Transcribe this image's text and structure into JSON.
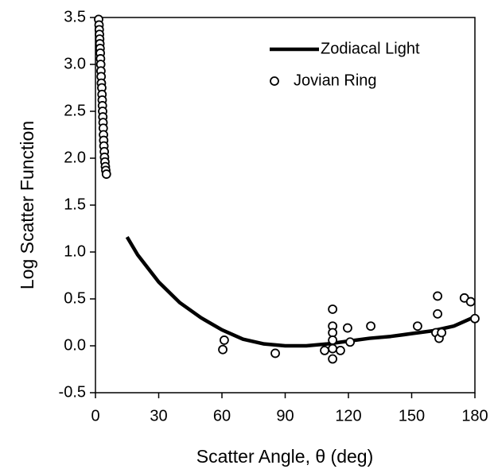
{
  "chart_data": {
    "type": "scatter",
    "xlabel": "Scatter Angle, θ (deg)",
    "ylabel": "Log Scatter Function",
    "xlim": [
      0,
      180
    ],
    "xticks": [
      0,
      30,
      60,
      90,
      120,
      150,
      180
    ],
    "ylim": [
      -0.5,
      3.5
    ],
    "yticks": [
      -0.5,
      {
        "value": 0,
        "label": "0.0"
      },
      0.5,
      {
        "value": 1,
        "label": "1.0"
      },
      1.5,
      {
        "value": 2,
        "label": "2.0"
      },
      2.5,
      {
        "value": 3,
        "label": "3.0"
      },
      3.5
    ],
    "legend": "upper right",
    "series": [
      {
        "name": "Zodiacal Light",
        "type": "line",
        "color": "#000000",
        "x": [
          15,
          20,
          30,
          40,
          50,
          60,
          70,
          80,
          90,
          100,
          110,
          120,
          130,
          140,
          150,
          160,
          170,
          180
        ],
        "values": [
          1.16,
          0.97,
          0.68,
          0.46,
          0.3,
          0.17,
          0.07,
          0.02,
          0.0,
          0.0,
          0.02,
          0.05,
          0.08,
          0.1,
          0.13,
          0.16,
          0.21,
          0.31
        ]
      },
      {
        "name": "Jovian Ring",
        "type": "scatter",
        "color": "#000000",
        "x": [
          1.5,
          1.7,
          1.8,
          1.9,
          2.0,
          2.1,
          2.2,
          2.3,
          2.4,
          2.5,
          2.6,
          2.7,
          2.8,
          3.0,
          3.1,
          3.2,
          3.3,
          3.4,
          3.5,
          3.6,
          3.7,
          3.8,
          3.9,
          4.0,
          4.2,
          4.3,
          4.5,
          4.7,
          4.9,
          5.2,
          60.4,
          61.1,
          85.3,
          108.7,
          112.5,
          112.5,
          112.5,
          112.5,
          112.5,
          112.5,
          116.2,
          119.6,
          120.8,
          130.6,
          152.8,
          162.3,
          162.3,
          161.5,
          163,
          164.2,
          175,
          178,
          180
        ],
        "values": [
          3.48,
          3.42,
          3.37,
          3.32,
          3.27,
          3.22,
          3.17,
          3.12,
          3.06,
          3.0,
          2.93,
          2.87,
          2.8,
          2.75,
          2.68,
          2.62,
          2.56,
          2.5,
          2.44,
          2.38,
          2.32,
          2.25,
          2.19,
          2.13,
          2.07,
          2.01,
          1.96,
          1.91,
          1.87,
          1.83,
          -0.04,
          0.06,
          -0.08,
          -0.05,
          0.39,
          0.21,
          0.14,
          0.06,
          -0.03,
          -0.14,
          -0.05,
          0.19,
          0.04,
          0.21,
          0.21,
          0.53,
          0.34,
          0.14,
          0.08,
          0.14,
          0.51,
          0.47,
          0.29
        ]
      }
    ]
  }
}
